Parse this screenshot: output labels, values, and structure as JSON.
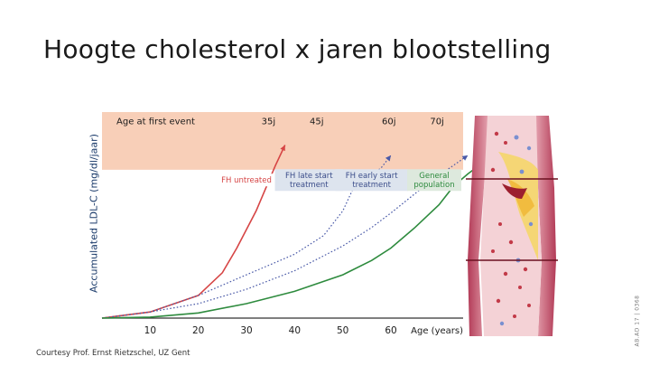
{
  "title": "Hoogte cholesterol x jaren blootstelling",
  "credit": "Courtesy Prof. Ernst Rietzschel, UZ Gent",
  "doc_code": "AB.AD 17 | 0368",
  "chart_data": {
    "type": "line",
    "ylabel": "Accumulated LDL-C (mg/dl/jaar)",
    "xlabel": "Age (years)",
    "xlim": [
      0,
      75
    ],
    "x_ticks": [
      10,
      20,
      30,
      40,
      50,
      60
    ],
    "ylim": [
      0,
      100
    ],
    "event_band": {
      "label": "Age at first event",
      "y_range": [
        72,
        100
      ],
      "color": "#f8cfb8"
    },
    "event_ages": [
      {
        "label": "35j",
        "x": 35
      },
      {
        "label": "45j",
        "x": 45
      },
      {
        "label": "60j",
        "x": 60
      },
      {
        "label": "70j",
        "x": 70
      }
    ],
    "series": [
      {
        "name": "FH untreated",
        "color": "#d64545",
        "style": "solid",
        "points": [
          [
            0,
            0
          ],
          [
            10,
            3
          ],
          [
            20,
            11
          ],
          [
            25,
            22
          ],
          [
            28,
            34
          ],
          [
            32,
            52
          ],
          [
            36,
            74
          ],
          [
            38,
            84
          ]
        ]
      },
      {
        "name": "FH late start treatment",
        "color": "#4a5aa8",
        "style": "dotted",
        "points": [
          [
            0,
            0
          ],
          [
            10,
            3
          ],
          [
            20,
            11
          ],
          [
            30,
            21
          ],
          [
            40,
            31
          ],
          [
            46,
            40
          ],
          [
            50,
            52
          ],
          [
            52,
            62
          ],
          [
            58,
            73
          ],
          [
            60,
            79
          ]
        ]
      },
      {
        "name": "FH early start treatment",
        "color": "#4a5aa8",
        "style": "dotted",
        "points": [
          [
            0,
            0
          ],
          [
            10,
            3
          ],
          [
            20,
            7
          ],
          [
            30,
            14
          ],
          [
            40,
            23
          ],
          [
            50,
            35
          ],
          [
            56,
            44
          ],
          [
            60,
            51
          ],
          [
            68,
            66
          ],
          [
            76,
            79
          ]
        ]
      },
      {
        "name": "General population",
        "color": "#2e8b3e",
        "style": "solid",
        "points": [
          [
            0,
            0
          ],
          [
            10,
            0.5
          ],
          [
            20,
            2.5
          ],
          [
            30,
            7
          ],
          [
            40,
            13
          ],
          [
            50,
            21
          ],
          [
            56,
            28
          ],
          [
            60,
            34
          ],
          [
            65,
            44
          ],
          [
            70,
            55
          ],
          [
            73,
            64
          ],
          [
            76,
            70
          ],
          [
            80,
            77
          ]
        ]
      }
    ],
    "series_labels": [
      {
        "text": [
          "FH untreated"
        ],
        "x": 30,
        "y": 67,
        "bg": "#ffffff",
        "color": "#d64545"
      },
      {
        "text": [
          "FH late start",
          "treatment"
        ],
        "x": 43,
        "y": 67,
        "bg": "#dde4ee",
        "color": "#3b4d8a"
      },
      {
        "text": [
          "FH early start",
          "treatment"
        ],
        "x": 56,
        "y": 67,
        "bg": "#dde4ee",
        "color": "#3b4d8a"
      },
      {
        "text": [
          "General",
          "population"
        ],
        "x": 69,
        "y": 67,
        "bg": "#dde9dd",
        "color": "#2e8b3e"
      }
    ],
    "grid": false,
    "legend": "inline"
  }
}
